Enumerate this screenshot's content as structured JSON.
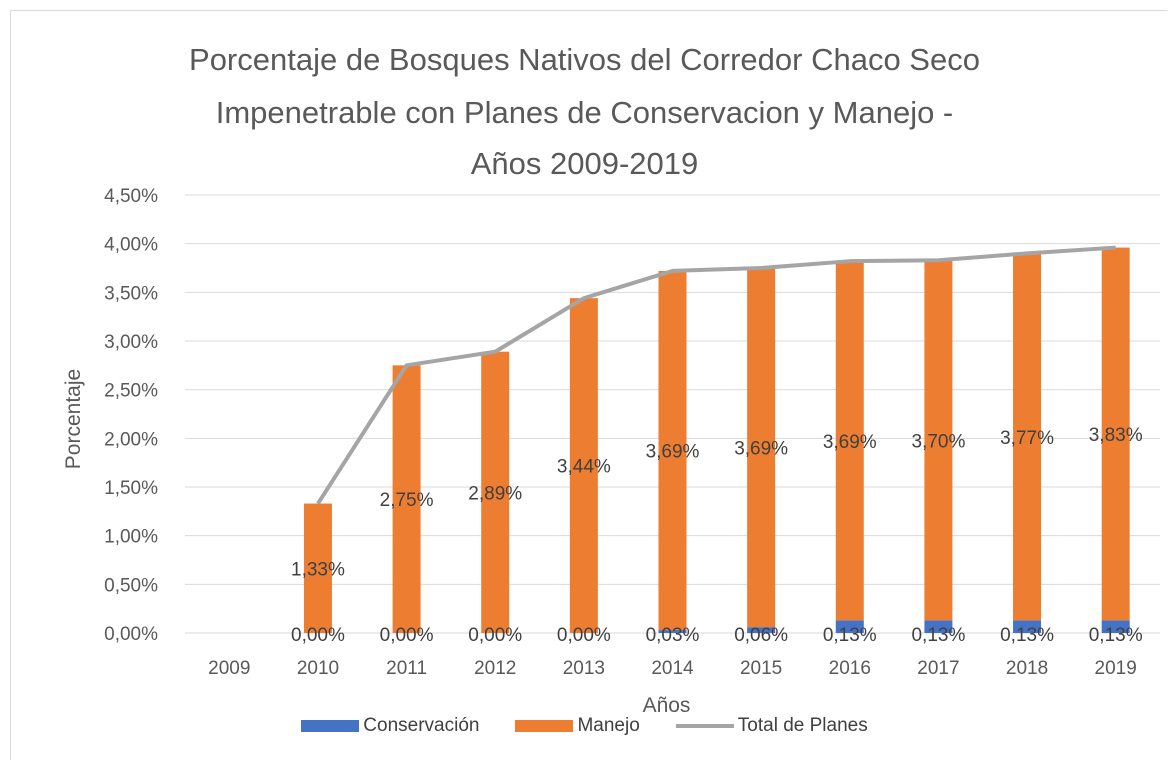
{
  "chart_data": {
    "type": "bar",
    "title_lines": [
      "Porcentaje de Bosques Nativos del Corredor Chaco Seco",
      "Impenetrable con Planes de Conservacion y Manejo -",
      "Años 2009-2019"
    ],
    "xlabel": "Años",
    "ylabel": "Porcentaje",
    "categories": [
      "2009",
      "2010",
      "2011",
      "2012",
      "2013",
      "2014",
      "2015",
      "2016",
      "2017",
      "2018",
      "2019"
    ],
    "yticks": [
      "0,00%",
      "0,50%",
      "1,00%",
      "1,50%",
      "2,00%",
      "2,50%",
      "3,00%",
      "3,50%",
      "4,00%",
      "4,50%"
    ],
    "ylim": [
      0,
      4.5
    ],
    "stacked": true,
    "grid": true,
    "legend_position": "bottom",
    "series": [
      {
        "name": "Conservación",
        "kind": "bar",
        "color": "#4472c4",
        "values": [
          0,
          0,
          0,
          0,
          0,
          0.03,
          0.06,
          0.13,
          0.13,
          0.13,
          0.13
        ],
        "labels": [
          "",
          "0,00%",
          "0,00%",
          "0,00%",
          "0,00%",
          "0,03%",
          "0,06%",
          "0,13%",
          "0,13%",
          "0,13%",
          "0,13%"
        ]
      },
      {
        "name": "Manejo",
        "kind": "bar",
        "color": "#ed7d31",
        "values": [
          0,
          1.33,
          2.75,
          2.89,
          3.44,
          3.69,
          3.69,
          3.69,
          3.7,
          3.77,
          3.83
        ],
        "labels": [
          "",
          "1,33%",
          "2,75%",
          "2,89%",
          "3,44%",
          "3,69%",
          "3,69%",
          "3,69%",
          "3,70%",
          "3,77%",
          "3,83%"
        ]
      },
      {
        "name": "Total de Planes",
        "kind": "line",
        "color": "#a5a5a5",
        "values": [
          null,
          1.33,
          2.75,
          2.89,
          3.44,
          3.72,
          3.75,
          3.82,
          3.83,
          3.9,
          3.96
        ]
      }
    ]
  }
}
